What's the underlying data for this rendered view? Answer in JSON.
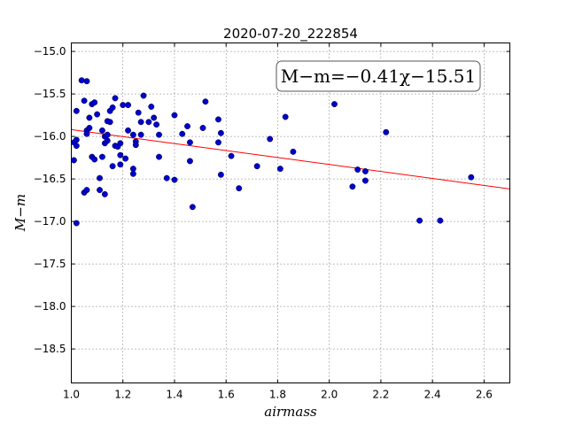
{
  "chart_data": {
    "type": "scatter",
    "title": "2020-07-20_222854",
    "xlabel": "airmass",
    "ylabel": "M−m",
    "annotation": "M−m=−0.41χ−15.51",
    "xlim": [
      1.0,
      2.7
    ],
    "ylim": [
      -18.9,
      -14.9
    ],
    "y_inverted": true,
    "grid": true,
    "xticks": [
      "1.0",
      "1.2",
      "1.4",
      "1.6",
      "1.8",
      "2.0",
      "2.2",
      "2.4",
      "2.6"
    ],
    "yticks": [
      "−15.0",
      "−15.5",
      "−16.0",
      "−16.5",
      "−17.0",
      "−17.5",
      "−18.0",
      "−18.5"
    ],
    "colors": {
      "points": "#0000cc",
      "fit": "#ff0000"
    },
    "fit": {
      "slope": -0.41,
      "intercept": -15.51
    },
    "points": [
      [
        1.01,
        -16.28
      ],
      [
        1.01,
        -16.07
      ],
      [
        1.02,
        -16.11
      ],
      [
        1.02,
        -16.04
      ],
      [
        1.02,
        -15.7
      ],
      [
        1.02,
        -17.02
      ],
      [
        1.04,
        -15.34
      ],
      [
        1.05,
        -15.58
      ],
      [
        1.06,
        -15.35
      ],
      [
        1.05,
        -16.66
      ],
      [
        1.06,
        -16.63
      ],
      [
        1.06,
        -15.93
      ],
      [
        1.06,
        -15.97
      ],
      [
        1.07,
        -15.78
      ],
      [
        1.07,
        -15.9
      ],
      [
        1.08,
        -15.62
      ],
      [
        1.08,
        -16.24
      ],
      [
        1.09,
        -16.27
      ],
      [
        1.09,
        -15.6
      ],
      [
        1.1,
        -15.74
      ],
      [
        1.11,
        -16.49
      ],
      [
        1.11,
        -16.63
      ],
      [
        1.12,
        -16.24
      ],
      [
        1.12,
        -15.93
      ],
      [
        1.13,
        -16.08
      ],
      [
        1.13,
        -16.68
      ],
      [
        1.13,
        -16.0
      ],
      [
        1.14,
        -15.82
      ],
      [
        1.14,
        -15.98
      ],
      [
        1.14,
        -16.05
      ],
      [
        1.15,
        -15.7
      ],
      [
        1.15,
        -15.83
      ],
      [
        1.16,
        -15.66
      ],
      [
        1.16,
        -16.35
      ],
      [
        1.17,
        -15.55
      ],
      [
        1.17,
        -16.11
      ],
      [
        1.18,
        -16.12
      ],
      [
        1.19,
        -16.22
      ],
      [
        1.19,
        -16.33
      ],
      [
        1.19,
        -16.08
      ],
      [
        1.2,
        -15.63
      ],
      [
        1.21,
        -16.26
      ],
      [
        1.22,
        -15.63
      ],
      [
        1.22,
        -15.93
      ],
      [
        1.24,
        -15.98
      ],
      [
        1.24,
        -16.44
      ],
      [
        1.24,
        -16.38
      ],
      [
        1.25,
        -16.06
      ],
      [
        1.25,
        -16.1
      ],
      [
        1.26,
        -15.72
      ],
      [
        1.27,
        -15.83
      ],
      [
        1.27,
        -15.98
      ],
      [
        1.28,
        -15.52
      ],
      [
        1.3,
        -15.83
      ],
      [
        1.31,
        -15.65
      ],
      [
        1.32,
        -15.78
      ],
      [
        1.33,
        -15.86
      ],
      [
        1.34,
        -15.98
      ],
      [
        1.34,
        -16.24
      ],
      [
        1.37,
        -16.49
      ],
      [
        1.4,
        -15.75
      ],
      [
        1.4,
        -16.51
      ],
      [
        1.43,
        -15.97
      ],
      [
        1.45,
        -15.88
      ],
      [
        1.46,
        -16.07
      ],
      [
        1.46,
        -16.29
      ],
      [
        1.47,
        -16.83
      ],
      [
        1.51,
        -15.9
      ],
      [
        1.52,
        -15.59
      ],
      [
        1.57,
        -15.8
      ],
      [
        1.57,
        -16.07
      ],
      [
        1.58,
        -15.96
      ],
      [
        1.58,
        -16.45
      ],
      [
        1.62,
        -16.23
      ],
      [
        1.65,
        -16.61
      ],
      [
        1.72,
        -16.35
      ],
      [
        1.77,
        -16.03
      ],
      [
        1.81,
        -16.38
      ],
      [
        1.83,
        -15.77
      ],
      [
        1.86,
        -16.18
      ],
      [
        2.02,
        -15.62
      ],
      [
        2.09,
        -16.59
      ],
      [
        2.11,
        -16.39
      ],
      [
        2.14,
        -16.41
      ],
      [
        2.14,
        -16.52
      ],
      [
        2.22,
        -15.95
      ],
      [
        2.35,
        -16.99
      ],
      [
        2.43,
        -16.99
      ],
      [
        2.55,
        -16.48
      ]
    ]
  }
}
